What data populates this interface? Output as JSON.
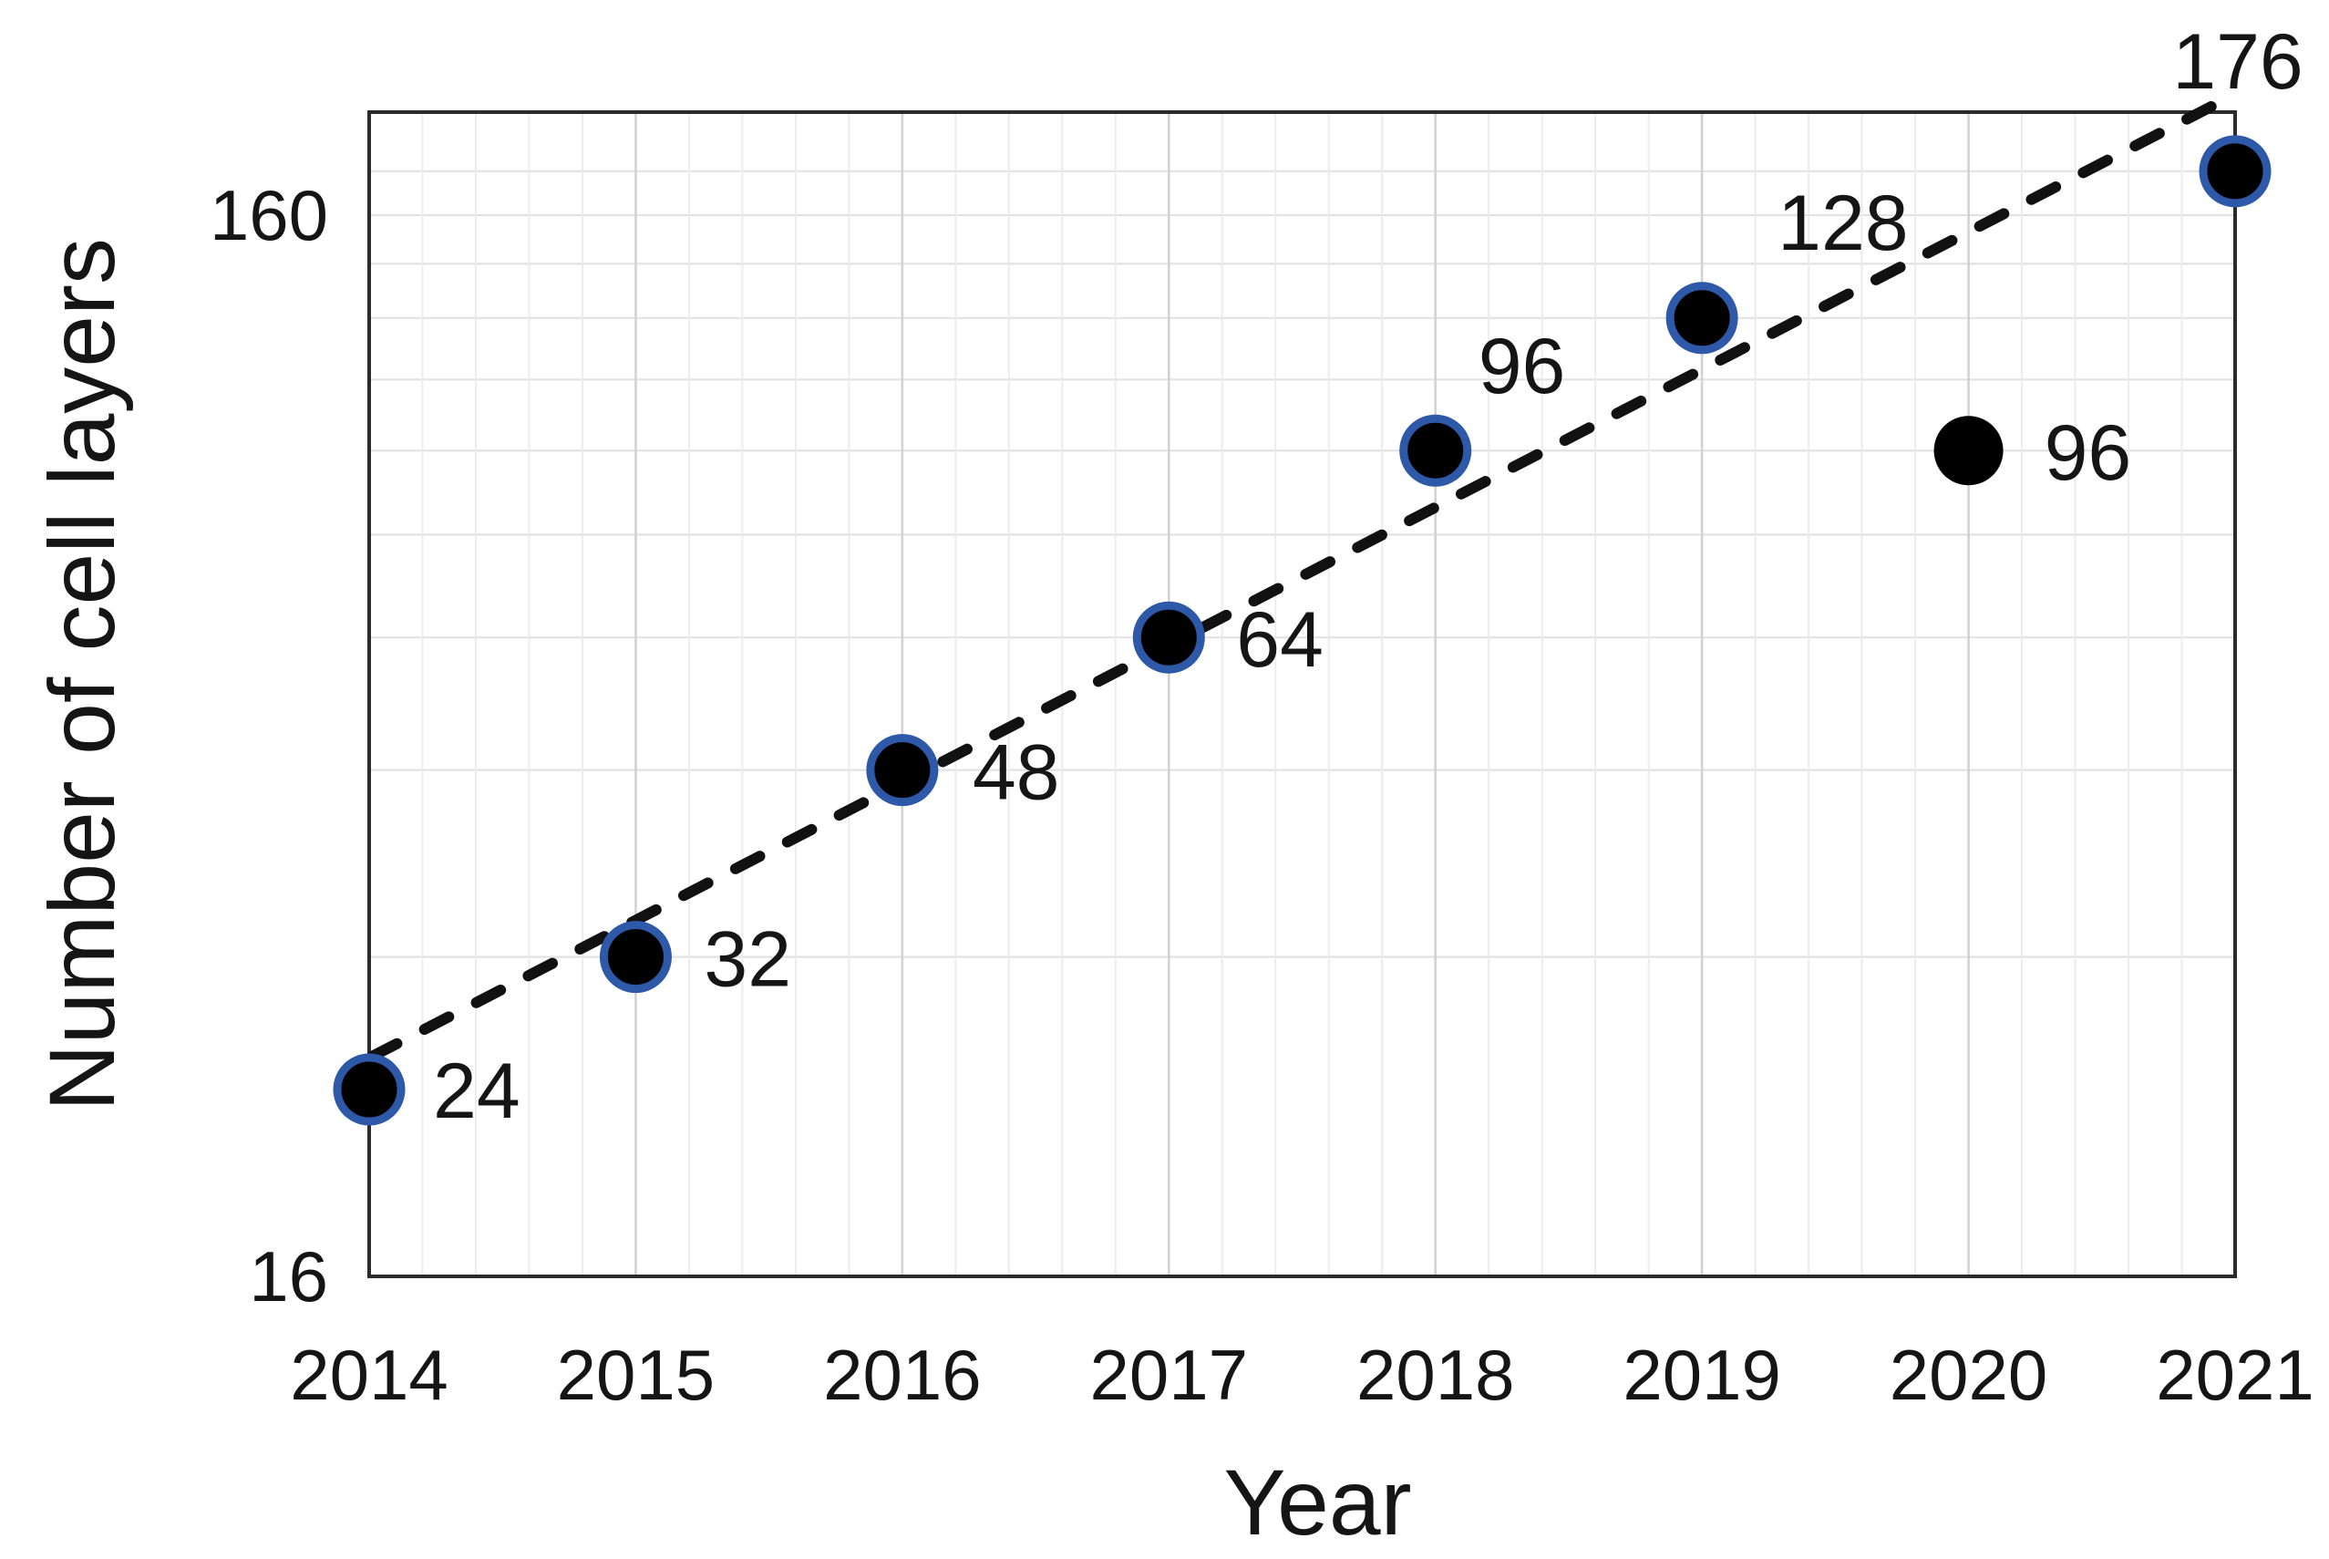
{
  "figure": {
    "background": "#ffffff"
  },
  "chart_data": {
    "type": "scatter",
    "title": "",
    "xlabel": "Year",
    "ylabel": "Number of cell layers",
    "x_range": [
      2014,
      2021
    ],
    "y_scale": "log",
    "y_range": [
      16,
      200
    ],
    "x_tick_labels": [
      "2014",
      "2015",
      "2016",
      "2017",
      "2018",
      "2019",
      "2020",
      "2021"
    ],
    "y_ticks": [
      {
        "value": 16,
        "label": "16"
      },
      {
        "value": 160,
        "label": "160"
      }
    ],
    "grid": {
      "horizontal_values": [
        32,
        48,
        64,
        80,
        96,
        112,
        128,
        144,
        160,
        176
      ],
      "vertical_minor_per_year": 5,
      "grid_on": true
    },
    "legend": {
      "visible": false
    },
    "series": [
      {
        "name": "cell-layers-trend-series",
        "marker": "black-circle-blue-ring",
        "points": [
          {
            "x": 2014,
            "y": 24,
            "label": "24",
            "label_dx": 118,
            "label_dy": 2
          },
          {
            "x": 2015,
            "y": 32,
            "label": "32",
            "label_dx": 123,
            "label_dy": 3
          },
          {
            "x": 2016,
            "y": 48,
            "label": "48",
            "label_dx": 125,
            "label_dy": 3
          },
          {
            "x": 2017,
            "y": 64,
            "label": "64",
            "label_dx": 122,
            "label_dy": 3
          },
          {
            "x": 2018,
            "y": 96,
            "label": "96",
            "label_dx": 95,
            "label_dy": -92
          },
          {
            "x": 2019,
            "y": 128,
            "label": "128",
            "label_dx": 131,
            "label_dy": -104
          },
          {
            "x": 2021,
            "y": 176,
            "label": "176",
            "label_dx": 3,
            "label_dy": -120
          }
        ]
      },
      {
        "name": "outlier-series",
        "marker": "black-circle",
        "points": [
          {
            "x": 2020,
            "y": 96,
            "label": "96",
            "label_dx": 131,
            "label_dy": 3
          }
        ]
      }
    ],
    "trendline": {
      "style": "dashed",
      "x1": 2014.013,
      "y1": 25.8,
      "x2": 2021,
      "y2": 208
    }
  },
  "colors": {
    "marker_fill": "#000000",
    "marker_ring": "#2e58a8",
    "trendline": "#111111",
    "grid_horizontal": "#e2e2e2",
    "grid_vertical_minor": "#ececec",
    "grid_vertical_year": "#d2d2d2",
    "plot_border": "#2b2b2b",
    "text": "#151515"
  }
}
